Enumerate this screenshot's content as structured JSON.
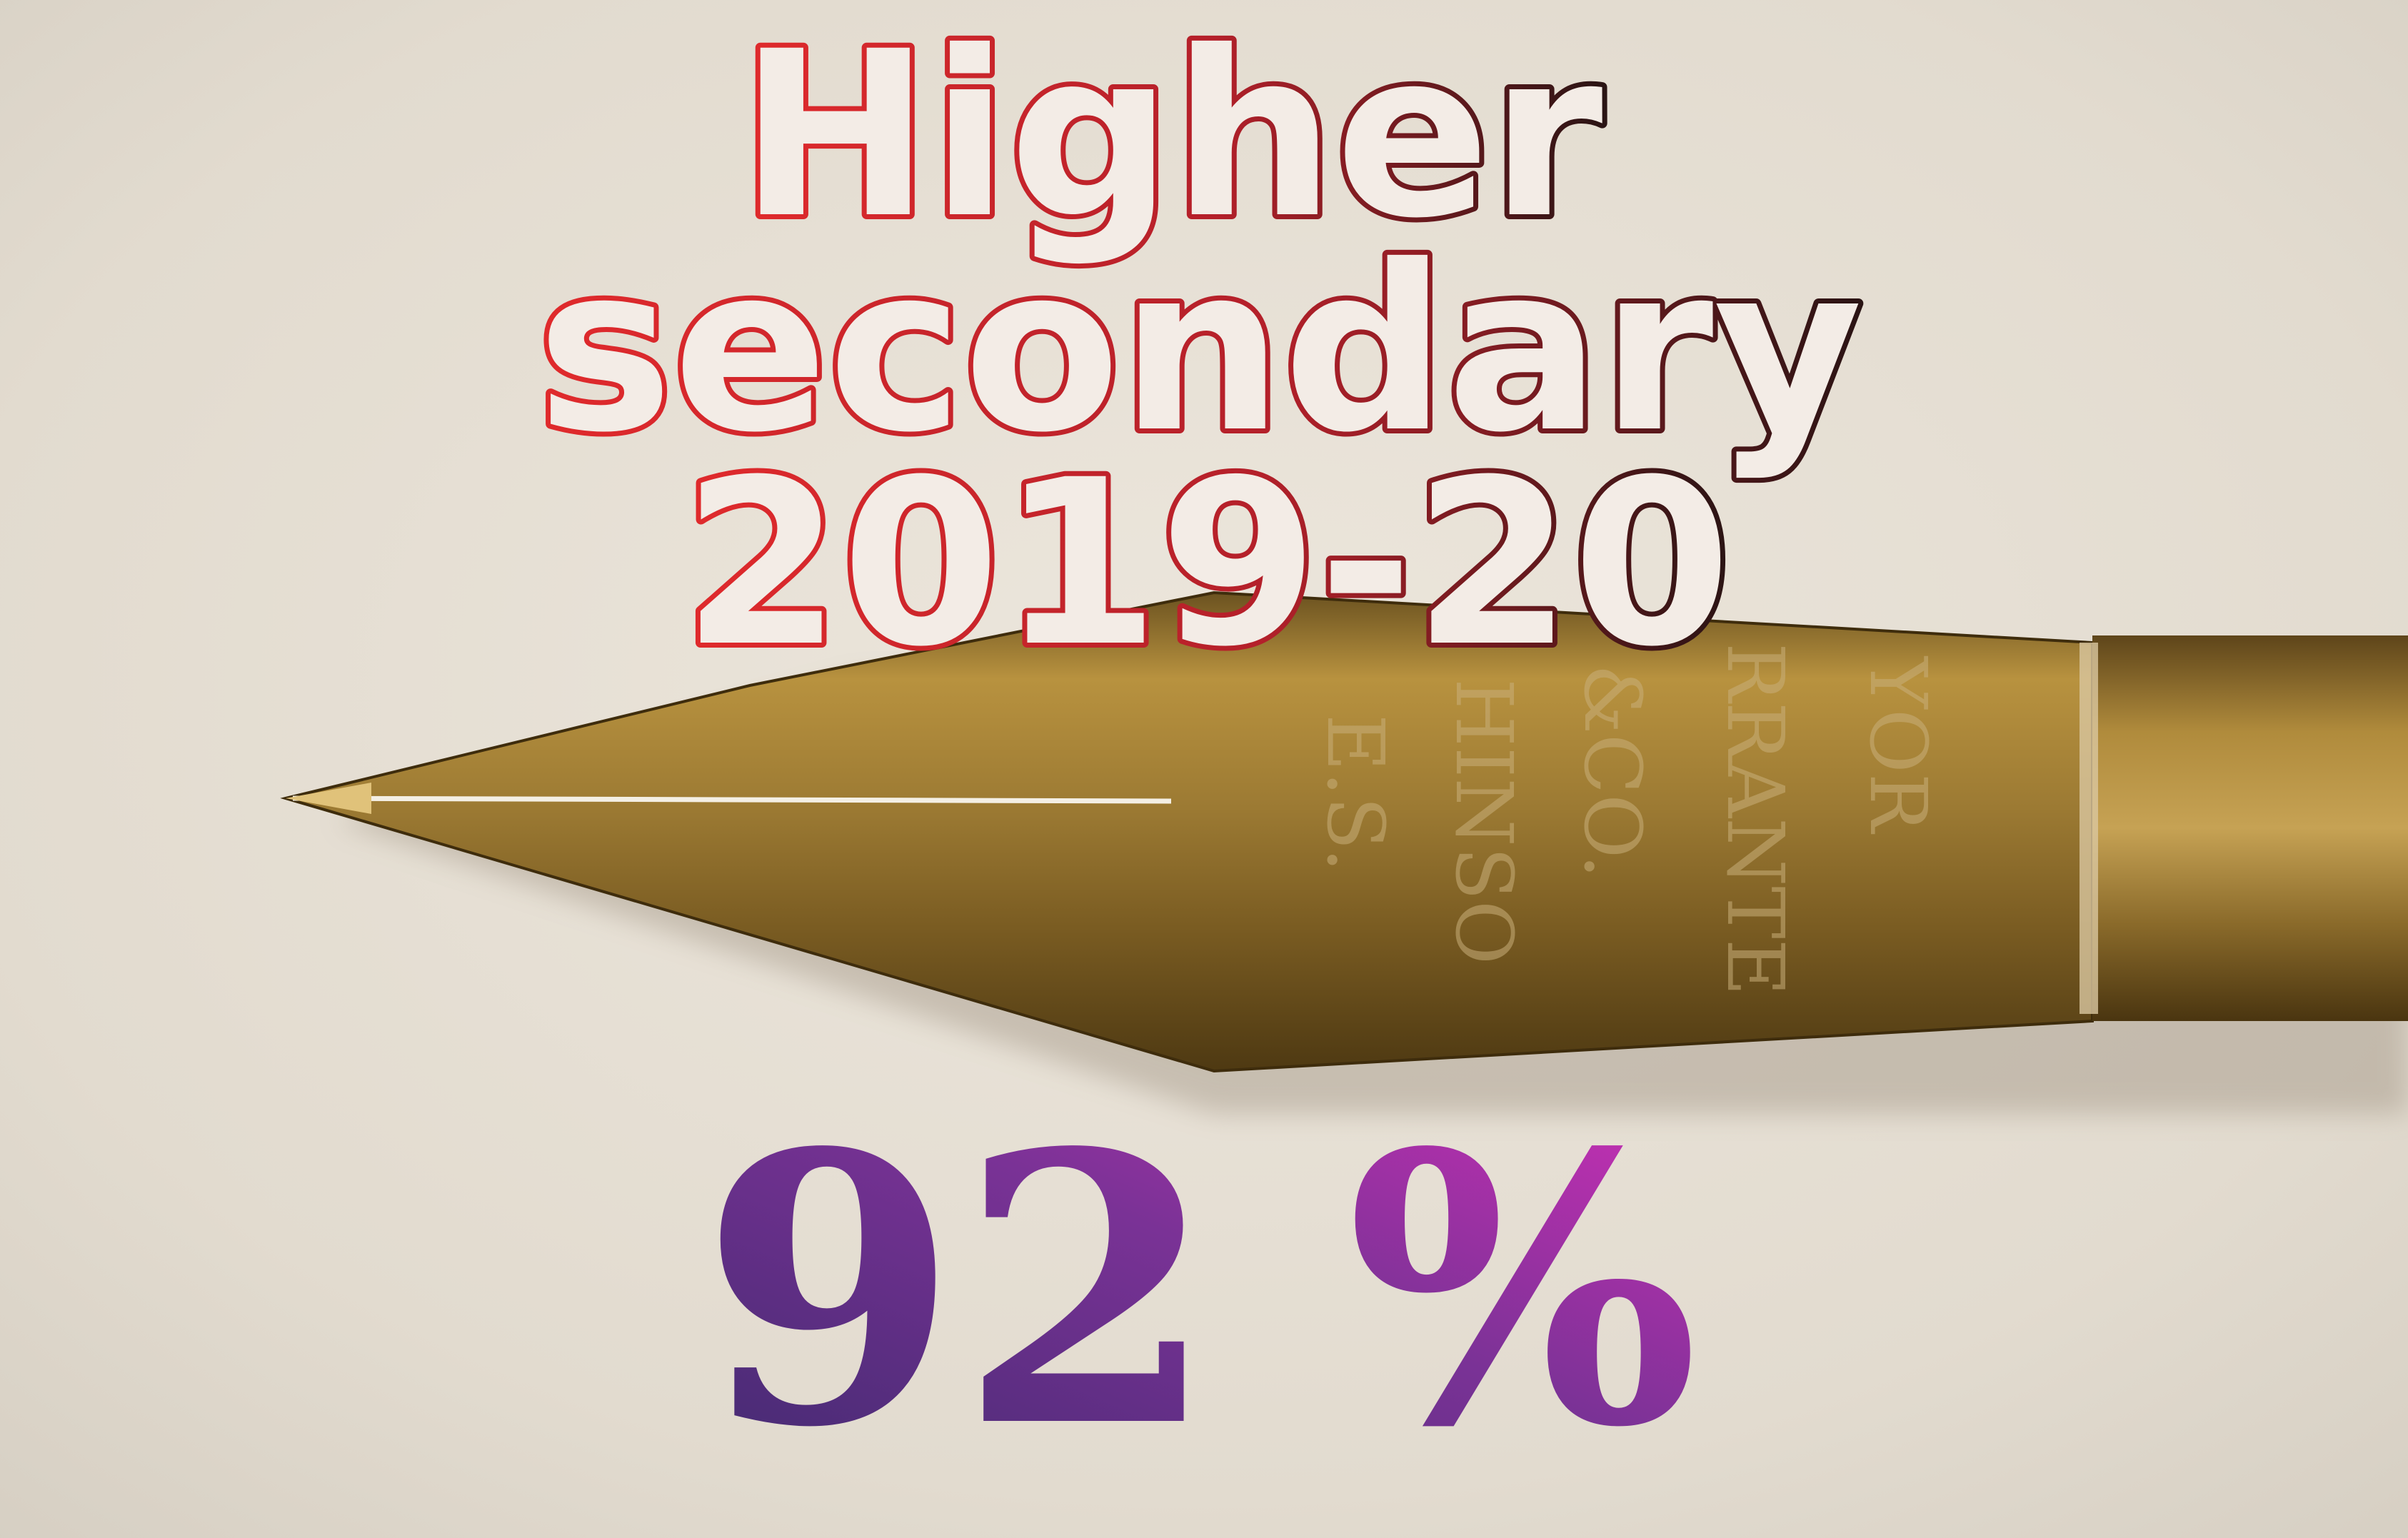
{
  "caption": {
    "line1": "Higher",
    "line2": "secondary",
    "line3": "2019-20"
  },
  "result": {
    "value": "92 %"
  },
  "nib_engraving": {
    "col1": "E.S.",
    "col2": "HINSO",
    "col3": "&CO.",
    "col4": "RRANTE",
    "col5": "YOR"
  },
  "colors": {
    "paper": "#e8e2d8",
    "brass": "#a7823a",
    "brass_dark": "#5a4216",
    "title_red": "#d8262c",
    "title_dark": "#2a1212",
    "percent_indigo": "#4a2f80",
    "percent_magenta": "#c42fb4"
  }
}
